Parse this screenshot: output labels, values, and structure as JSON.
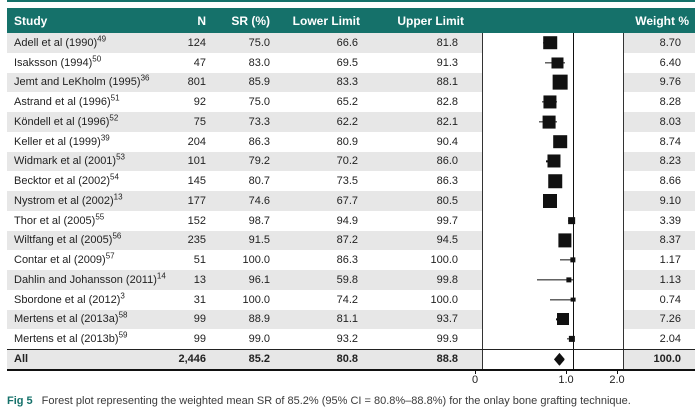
{
  "colors": {
    "header_teal": "#15716a",
    "stripe_gray": "#e7e7e7",
    "marker_black": "#111111"
  },
  "chart_data": {
    "type": "scatter",
    "subtype": "forest-plot",
    "columns": [
      "Study",
      "N",
      "SR (%)",
      "Lower Limit",
      "Upper Limit",
      "Weight %"
    ],
    "x_axis": {
      "tick_labels": [
        "0",
        "1.0",
        "2.0"
      ],
      "ticks": [
        0,
        1.0,
        2.0
      ],
      "reference_line": 1.0
    },
    "rows": [
      {
        "study": "Adell et al (1990)",
        "ref": "49",
        "n": "124",
        "sr": "75.0",
        "lower": "66.6",
        "upper": "81.8",
        "weight": "8.70"
      },
      {
        "study": "Isaksson (1994)",
        "ref": "50",
        "n": "47",
        "sr": "83.0",
        "lower": "69.5",
        "upper": "91.3",
        "weight": "6.40"
      },
      {
        "study": "Jemt and LeKholm (1995)",
        "ref": "36",
        "n": "801",
        "sr": "85.9",
        "lower": "83.3",
        "upper": "88.1",
        "weight": "9.76"
      },
      {
        "study": "Astrand et al (1996)",
        "ref": "51",
        "n": "92",
        "sr": "75.0",
        "lower": "65.2",
        "upper": "82.8",
        "weight": "8.28"
      },
      {
        "study": "Köndell et al (1996)",
        "ref": "52",
        "n": "75",
        "sr": "73.3",
        "lower": "62.2",
        "upper": "82.1",
        "weight": "8.03"
      },
      {
        "study": "Keller et al (1999)",
        "ref": "39",
        "n": "204",
        "sr": "86.3",
        "lower": "80.9",
        "upper": "90.4",
        "weight": "8.74"
      },
      {
        "study": "Widmark et al (2001)",
        "ref": "53",
        "n": "101",
        "sr": "79.2",
        "lower": "70.2",
        "upper": "86.0",
        "weight": "8.23"
      },
      {
        "study": "Becktor et al (2002)",
        "ref": "54",
        "n": "145",
        "sr": "80.7",
        "lower": "73.5",
        "upper": "86.3",
        "weight": "8.66"
      },
      {
        "study": "Nystrom et al (2002)",
        "ref": "13",
        "n": "177",
        "sr": "74.6",
        "lower": "67.7",
        "upper": "80.5",
        "weight": "9.10"
      },
      {
        "study": "Thor et al (2005)",
        "ref": "55",
        "n": "152",
        "sr": "98.7",
        "lower": "94.9",
        "upper": "99.7",
        "weight": "3.39"
      },
      {
        "study": "Wiltfang et al (2005)",
        "ref": "56",
        "n": "235",
        "sr": "91.5",
        "lower": "87.2",
        "upper": "94.5",
        "weight": "8.37"
      },
      {
        "study": "Contar et al (2009)",
        "ref": "57",
        "n": "51",
        "sr": "100.0",
        "lower": "86.3",
        "upper": "100.0",
        "weight": "1.17"
      },
      {
        "study": "Dahlin and Johansson (2011)",
        "ref": "14",
        "n": "13",
        "sr": "96.1",
        "lower": "59.8",
        "upper": "99.8",
        "weight": "1.13"
      },
      {
        "study": "Sbordone et al (2012)",
        "ref": "3",
        "n": "31",
        "sr": "100.0",
        "lower": "74.2",
        "upper": "100.0",
        "weight": "0.74"
      },
      {
        "study": "Mertens et al (2013a)",
        "ref": "58",
        "n": "99",
        "sr": "88.9",
        "lower": "81.1",
        "upper": "93.7",
        "weight": "7.26"
      },
      {
        "study": "Mertens et al (2013b)",
        "ref": "59",
        "n": "99",
        "sr": "99.0",
        "lower": "93.2",
        "upper": "99.9",
        "weight": "2.04"
      },
      {
        "study": "All",
        "ref": "",
        "n": "2,446",
        "sr": "85.2",
        "lower": "80.8",
        "upper": "88.8",
        "weight": "100.0",
        "is_summary": true
      }
    ],
    "summary": {
      "weighted_mean_sr": 85.2,
      "ci_lower": 80.8,
      "ci_upper": 88.8,
      "total_n": 2446
    }
  },
  "caption": {
    "label": "Fig 5",
    "text": "Forest plot representing the weighted mean SR of 85.2% (95% CI = 80.8%–88.8%) for the onlay bone grafting technique."
  }
}
